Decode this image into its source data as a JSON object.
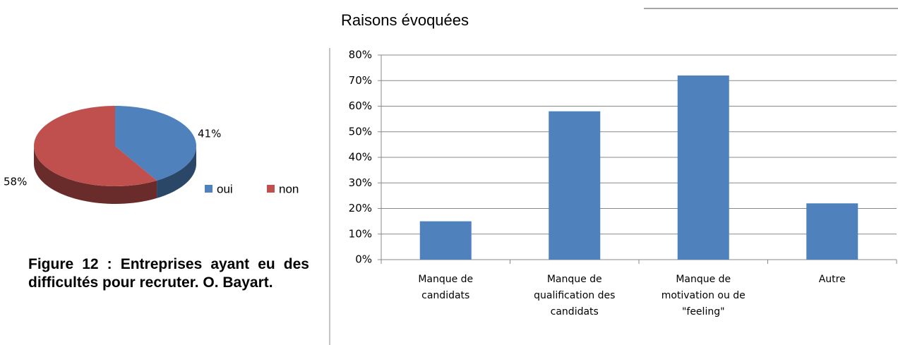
{
  "chart_data": [
    {
      "type": "pie",
      "categories": [
        "oui",
        "non"
      ],
      "values": [
        41,
        58
      ],
      "value_labels": [
        "41%",
        "58%"
      ],
      "colors": [
        "#4f81bd",
        "#c0504d"
      ],
      "legend": "right"
    },
    {
      "type": "bar",
      "title": "Raisons évoquées",
      "categories": [
        "Manque de\ncandidats",
        "Manque de\nqualification des\ncandidats",
        "Manque de\nmotivation ou de\n\"feeling\"",
        "Autre"
      ],
      "values": [
        15,
        58,
        72,
        22
      ],
      "color": "#4f81bd",
      "ylim": [
        0,
        80
      ],
      "yticks": [
        {
          "value": 0,
          "label": "0%"
        },
        {
          "value": 10,
          "label": "10%"
        },
        {
          "value": 20,
          "label": "20%"
        },
        {
          "value": 30,
          "label": "30%"
        },
        {
          "value": 40,
          "label": "40%"
        },
        {
          "value": 50,
          "label": "50%"
        },
        {
          "value": 60,
          "label": "60%"
        },
        {
          "value": 70,
          "label": "70%"
        },
        {
          "value": 80,
          "label": "80%"
        }
      ],
      "grid": true
    }
  ],
  "caption": "Figure 12 : Entreprises ayant eu des difficultés pour recruter. O. Bayart."
}
